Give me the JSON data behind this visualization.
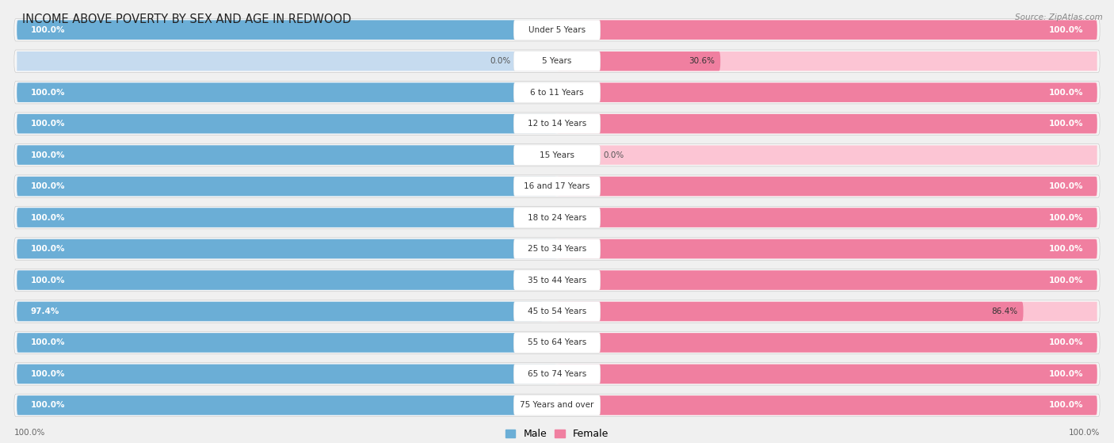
{
  "title": "INCOME ABOVE POVERTY BY SEX AND AGE IN REDWOOD",
  "source": "Source: ZipAtlas.com",
  "categories": [
    "Under 5 Years",
    "5 Years",
    "6 to 11 Years",
    "12 to 14 Years",
    "15 Years",
    "16 and 17 Years",
    "18 to 24 Years",
    "25 to 34 Years",
    "35 to 44 Years",
    "45 to 54 Years",
    "55 to 64 Years",
    "65 to 74 Years",
    "75 Years and over"
  ],
  "male_values": [
    100.0,
    0.0,
    100.0,
    100.0,
    100.0,
    100.0,
    100.0,
    100.0,
    100.0,
    97.4,
    100.0,
    100.0,
    100.0
  ],
  "female_values": [
    100.0,
    30.6,
    100.0,
    100.0,
    0.0,
    100.0,
    100.0,
    100.0,
    100.0,
    86.4,
    100.0,
    100.0,
    100.0
  ],
  "male_color": "#6baed6",
  "female_color": "#f07fa0",
  "male_color_light": "#c6dbef",
  "female_color_light": "#fcc5d4",
  "outer_bg": "#e0e0e0",
  "row_bg": "#f7f7f7",
  "bar_inner_bg": "#ffffff",
  "fig_bg": "#f0f0f0",
  "legend_male": "Male",
  "legend_female": "Female",
  "title_fontsize": 10.5,
  "label_fontsize": 7.5,
  "value_fontsize": 7.5
}
